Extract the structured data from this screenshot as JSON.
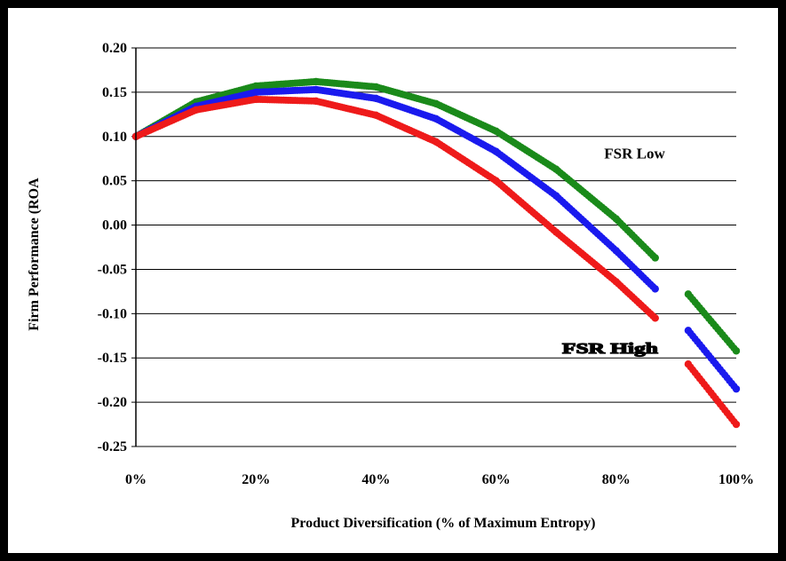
{
  "chart_data": {
    "type": "scatter",
    "title": "",
    "xlabel": "Product Diversification (% of Maximum Entropy)",
    "ylabel": "Firm  Performance (ROA",
    "xlim": [
      0,
      1
    ],
    "ylim": [
      -0.25,
      0.2
    ],
    "x_ticks": [
      "0%",
      "20%",
      "40%",
      "60%",
      "80%",
      "100%"
    ],
    "y_ticks": [
      "0.20",
      "0.15",
      "0.10",
      "0.05",
      "0.00",
      "-0.05",
      "-0.10",
      "-0.15",
      "-0.20",
      "-0.25"
    ],
    "grid": "horizontal",
    "annotations": [
      {
        "text": "FSR Low",
        "x": 0.78,
        "y": 0.075
      },
      {
        "text": "FSR High",
        "x": 0.71,
        "y": -0.145
      }
    ],
    "series": [
      {
        "color": "#1a8a1a",
        "x": [
          0,
          0.1,
          0.2,
          0.3,
          0.4,
          0.5,
          0.6,
          0.7,
          0.8,
          0.865,
          0.92,
          1.0
        ],
        "y": [
          0.1,
          0.139,
          0.157,
          0.162,
          0.156,
          0.137,
          0.106,
          0.063,
          0.007,
          -0.037,
          -0.078,
          -0.142
        ]
      },
      {
        "color": "#1a1aee",
        "x": [
          0,
          0.1,
          0.2,
          0.3,
          0.4,
          0.5,
          0.6,
          0.7,
          0.8,
          0.865,
          0.92,
          1.0
        ],
        "y": [
          0.1,
          0.134,
          0.15,
          0.153,
          0.143,
          0.12,
          0.083,
          0.033,
          -0.029,
          -0.072,
          -0.119,
          -0.185
        ]
      },
      {
        "color": "#ee1a1a",
        "x": [
          0,
          0.1,
          0.2,
          0.3,
          0.4,
          0.5,
          0.6,
          0.7,
          0.8,
          0.865,
          0.92,
          1.0
        ],
        "y": [
          0.1,
          0.13,
          0.142,
          0.14,
          0.124,
          0.094,
          0.05,
          -0.008,
          -0.064,
          -0.105,
          -0.157,
          -0.225
        ]
      }
    ]
  }
}
